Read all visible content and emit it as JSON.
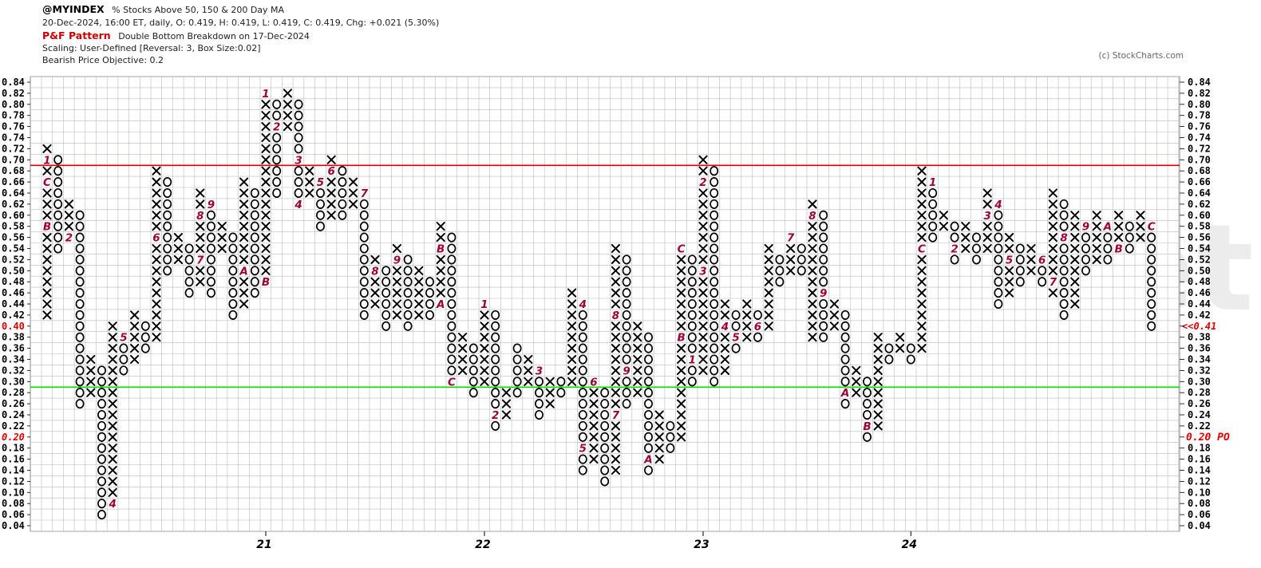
{
  "header": {
    "symbol": "@MYINDEX",
    "description": "% Stocks Above 50, 150 & 200 Day MA",
    "quote_line": "20-Dec-2024, 16:00 ET, daily, O: 0.419, H: 0.419, L: 0.419, C: 0.419, Chg: +0.021 (5.30%)",
    "pattern_label": "P&F Pattern",
    "pattern_text": "Double Bottom Breakdown on 17-Dec-2024",
    "scaling": "Scaling: User-Defined [Reversal: 3, Box Size:0.02]",
    "objective": "Bearish Price Objective: 0.2",
    "credit": "(c) StockCharts.com"
  },
  "watermark": "asxanalysis.net",
  "colors": {
    "x_mark": "#000000",
    "o_mark": "#000000",
    "month_mark": "#a0003a",
    "resistance": "#dd0000",
    "support": "#00dd00",
    "grid": "#bbbbbb",
    "label_red": "#dd0000"
  },
  "chart_data": {
    "type": "point-and-figure",
    "box_size": 0.02,
    "reversal": 3,
    "ylim": [
      0.04,
      0.84
    ],
    "y_ticks": [
      "0.84",
      "0.82",
      "0.80",
      "0.78",
      "0.76",
      "0.74",
      "0.72",
      "0.70",
      "0.68",
      "0.66",
      "0.64",
      "0.62",
      "0.60",
      "0.58",
      "0.56",
      "0.54",
      "0.52",
      "0.50",
      "0.48",
      "0.46",
      "0.44",
      "0.42",
      "0.40",
      "0.38",
      "0.36",
      "0.34",
      "0.32",
      "0.30",
      "0.28",
      "0.26",
      "0.24",
      "0.22",
      "0.20",
      "0.18",
      "0.16",
      "0.14",
      "0.12",
      "0.10",
      "0.08",
      "0.06",
      "0.04"
    ],
    "x_labels": [
      {
        "label": "21",
        "column": 20
      },
      {
        "label": "22",
        "column": 40
      },
      {
        "label": "23",
        "column": 60
      },
      {
        "label": "24",
        "column": 79
      }
    ],
    "left_highlight": {
      "label": "0.40",
      "value": 0.4
    },
    "right_last_price_label": "<<0.41",
    "right_objective_label": "0.20 PO",
    "objective_value": 0.2,
    "resistance_line": 0.69,
    "support_line": 0.29,
    "columns": [
      {
        "type": "X",
        "low": 0.42,
        "high": 0.72,
        "marks": {
          "0.70": "1",
          "0.66": "C",
          "0.58": "B"
        }
      },
      {
        "type": "O",
        "low": 0.54,
        "high": 0.7
      },
      {
        "type": "X",
        "low": 0.56,
        "high": 0.62,
        "marks": {
          "0.56": "2"
        }
      },
      {
        "type": "O",
        "low": 0.26,
        "high": 0.6
      },
      {
        "type": "X",
        "low": 0.28,
        "high": 0.34,
        "marks": {
          "0.26": "3"
        }
      },
      {
        "type": "O",
        "low": 0.06,
        "high": 0.32
      },
      {
        "type": "X",
        "low": 0.08,
        "high": 0.4,
        "marks": {
          "0.08": "4"
        }
      },
      {
        "type": "O",
        "low": 0.32,
        "high": 0.38,
        "marks": {
          "0.38": "5"
        }
      },
      {
        "type": "X",
        "low": 0.34,
        "high": 0.42
      },
      {
        "type": "O",
        "low": 0.36,
        "high": 0.4
      },
      {
        "type": "X",
        "low": 0.38,
        "high": 0.68,
        "marks": {
          "0.56": "6"
        }
      },
      {
        "type": "O",
        "low": 0.5,
        "high": 0.66
      },
      {
        "type": "X",
        "low": 0.52,
        "high": 0.56
      },
      {
        "type": "O",
        "low": 0.46,
        "high": 0.54
      },
      {
        "type": "X",
        "low": 0.48,
        "high": 0.64,
        "marks": {
          "0.60": "8",
          "0.52": "7"
        }
      },
      {
        "type": "O",
        "low": 0.46,
        "high": 0.62,
        "marks": {
          "0.62": "9"
        }
      },
      {
        "type": "X",
        "low": 0.54,
        "high": 0.58
      },
      {
        "type": "O",
        "low": 0.42,
        "high": 0.56
      },
      {
        "type": "X",
        "low": 0.44,
        "high": 0.66,
        "marks": {
          "0.50": "A"
        }
      },
      {
        "type": "O",
        "low": 0.46,
        "high": 0.64
      },
      {
        "type": "X",
        "low": 0.48,
        "high": 0.82,
        "marks": {
          "0.82": "1",
          "0.48": "B"
        }
      },
      {
        "type": "O",
        "low": 0.64,
        "high": 0.8,
        "marks": {
          "0.76": "2"
        }
      },
      {
        "type": "X",
        "low": 0.76,
        "high": 0.82
      },
      {
        "type": "O",
        "low": 0.62,
        "high": 0.8,
        "marks": {
          "0.70": "3",
          "0.62": "4"
        }
      },
      {
        "type": "X",
        "low": 0.64,
        "high": 0.68
      },
      {
        "type": "O",
        "low": 0.58,
        "high": 0.66,
        "marks": {
          "0.66": "5"
        }
      },
      {
        "type": "X",
        "low": 0.6,
        "high": 0.7,
        "marks": {
          "0.68": "6"
        }
      },
      {
        "type": "O",
        "low": 0.6,
        "high": 0.68
      },
      {
        "type": "X",
        "low": 0.62,
        "high": 0.66
      },
      {
        "type": "O",
        "low": 0.42,
        "high": 0.64,
        "marks": {
          "0.64": "7"
        }
      },
      {
        "type": "X",
        "low": 0.44,
        "high": 0.52,
        "marks": {
          "0.50": "8"
        }
      },
      {
        "type": "O",
        "low": 0.4,
        "high": 0.5
      },
      {
        "type": "X",
        "low": 0.42,
        "high": 0.54,
        "marks": {
          "0.52": "9"
        }
      },
      {
        "type": "O",
        "low": 0.4,
        "high": 0.52
      },
      {
        "type": "X",
        "low": 0.42,
        "high": 0.5
      },
      {
        "type": "O",
        "low": 0.42,
        "high": 0.48
      },
      {
        "type": "X",
        "low": 0.44,
        "high": 0.58,
        "marks": {
          "0.54": "B",
          "0.44": "A"
        }
      },
      {
        "type": "O",
        "low": 0.3,
        "high": 0.56,
        "marks": {
          "0.30": "C"
        }
      },
      {
        "type": "X",
        "low": 0.32,
        "high": 0.38
      },
      {
        "type": "O",
        "low": 0.28,
        "high": 0.36
      },
      {
        "type": "X",
        "low": 0.3,
        "high": 0.44,
        "marks": {
          "0.44": "1"
        }
      },
      {
        "type": "O",
        "low": 0.22,
        "high": 0.42,
        "marks": {
          "0.24": "2"
        }
      },
      {
        "type": "X",
        "low": 0.24,
        "high": 0.28
      },
      {
        "type": "O",
        "low": 0.28,
        "high": 0.36
      },
      {
        "type": "X",
        "low": 0.3,
        "high": 0.34
      },
      {
        "type": "O",
        "low": 0.24,
        "high": 0.32,
        "marks": {
          "0.32": "3"
        }
      },
      {
        "type": "X",
        "low": 0.26,
        "high": 0.3
      },
      {
        "type": "O",
        "low": 0.28,
        "high": 0.3
      },
      {
        "type": "X",
        "low": 0.3,
        "high": 0.46
      },
      {
        "type": "O",
        "low": 0.14,
        "high": 0.44,
        "marks": {
          "0.44": "4",
          "0.18": "5"
        }
      },
      {
        "type": "X",
        "low": 0.16,
        "high": 0.3,
        "marks": {
          "0.30": "6"
        }
      },
      {
        "type": "O",
        "low": 0.12,
        "high": 0.28
      },
      {
        "type": "X",
        "low": 0.14,
        "high": 0.54,
        "marks": {
          "0.42": "8",
          "0.24": "7"
        }
      },
      {
        "type": "O",
        "low": 0.26,
        "high": 0.52,
        "marks": {
          "0.32": "9"
        }
      },
      {
        "type": "X",
        "low": 0.28,
        "high": 0.4
      },
      {
        "type": "O",
        "low": 0.14,
        "high": 0.38,
        "marks": {
          "0.16": "A"
        }
      },
      {
        "type": "X",
        "low": 0.16,
        "high": 0.24
      },
      {
        "type": "O",
        "low": 0.18,
        "high": 0.22
      },
      {
        "type": "X",
        "low": 0.2,
        "high": 0.54,
        "marks": {
          "0.54": "C",
          "0.38": "B"
        }
      },
      {
        "type": "O",
        "low": 0.3,
        "high": 0.52,
        "marks": {
          "0.34": "1"
        }
      },
      {
        "type": "X",
        "low": 0.32,
        "high": 0.7,
        "marks": {
          "0.66": "2",
          "0.50": "3"
        }
      },
      {
        "type": "O",
        "low": 0.3,
        "high": 0.68
      },
      {
        "type": "X",
        "low": 0.32,
        "high": 0.44,
        "marks": {
          "0.40": "4"
        }
      },
      {
        "type": "O",
        "low": 0.36,
        "high": 0.42,
        "marks": {
          "0.38": "5"
        }
      },
      {
        "type": "X",
        "low": 0.38,
        "high": 0.44
      },
      {
        "type": "O",
        "low": 0.38,
        "high": 0.42,
        "marks": {
          "0.40": "6"
        }
      },
      {
        "type": "X",
        "low": 0.4,
        "high": 0.54
      },
      {
        "type": "O",
        "low": 0.48,
        "high": 0.52
      },
      {
        "type": "X",
        "low": 0.5,
        "high": 0.56,
        "marks": {
          "0.56": "7"
        }
      },
      {
        "type": "O",
        "low": 0.5,
        "high": 0.54
      },
      {
        "type": "X",
        "low": 0.38,
        "high": 0.62,
        "marks": {
          "0.60": "8"
        }
      },
      {
        "type": "O",
        "low": 0.38,
        "high": 0.6,
        "marks": {
          "0.46": "9"
        }
      },
      {
        "type": "X",
        "low": 0.4,
        "high": 0.44
      },
      {
        "type": "O",
        "low": 0.26,
        "high": 0.42,
        "marks": {
          "0.28": "A"
        }
      },
      {
        "type": "X",
        "low": 0.28,
        "high": 0.32
      },
      {
        "type": "O",
        "low": 0.2,
        "high": 0.3,
        "marks": {
          "0.22": "B"
        }
      },
      {
        "type": "X",
        "low": 0.22,
        "high": 0.38
      },
      {
        "type": "O",
        "low": 0.34,
        "high": 0.36
      },
      {
        "type": "X",
        "low": 0.36,
        "high": 0.38
      },
      {
        "type": "O",
        "low": 0.34,
        "high": 0.36
      },
      {
        "type": "X",
        "low": 0.36,
        "high": 0.68,
        "marks": {
          "0.54": "C"
        }
      },
      {
        "type": "O",
        "low": 0.56,
        "high": 0.66,
        "marks": {
          "0.66": "1"
        }
      },
      {
        "type": "X",
        "low": 0.58,
        "high": 0.6
      },
      {
        "type": "O",
        "low": 0.52,
        "high": 0.58,
        "marks": {
          "0.54": "2"
        }
      },
      {
        "type": "X",
        "low": 0.54,
        "high": 0.58
      },
      {
        "type": "O",
        "low": 0.52,
        "high": 0.56
      },
      {
        "type": "X",
        "low": 0.54,
        "high": 0.64,
        "marks": {
          "0.60": "3"
        }
      },
      {
        "type": "O",
        "low": 0.44,
        "high": 0.62,
        "marks": {
          "0.62": "4"
        }
      },
      {
        "type": "X",
        "low": 0.46,
        "high": 0.56,
        "marks": {
          "0.52": "5"
        }
      },
      {
        "type": "O",
        "low": 0.48,
        "high": 0.54
      },
      {
        "type": "X",
        "low": 0.5,
        "high": 0.54
      },
      {
        "type": "O",
        "low": 0.48,
        "high": 0.52,
        "marks": {
          "0.52": "6"
        }
      },
      {
        "type": "X",
        "low": 0.46,
        "high": 0.64,
        "marks": {
          "0.48": "7"
        }
      },
      {
        "type": "O",
        "low": 0.42,
        "high": 0.62,
        "marks": {
          "0.56": "8"
        }
      },
      {
        "type": "X",
        "low": 0.44,
        "high": 0.6
      },
      {
        "type": "O",
        "low": 0.5,
        "high": 0.58,
        "marks": {
          "0.58": "9"
        }
      },
      {
        "type": "X",
        "low": 0.52,
        "high": 0.6
      },
      {
        "type": "O",
        "low": 0.52,
        "high": 0.58,
        "marks": {
          "0.58": "A"
        }
      },
      {
        "type": "X",
        "low": 0.54,
        "high": 0.6,
        "marks": {
          "0.54": "B"
        }
      },
      {
        "type": "O",
        "low": 0.54,
        "high": 0.58
      },
      {
        "type": "X",
        "low": 0.56,
        "high": 0.6
      },
      {
        "type": "O",
        "low": 0.4,
        "high": 0.58,
        "marks": {
          "0.58": "C"
        }
      }
    ]
  }
}
